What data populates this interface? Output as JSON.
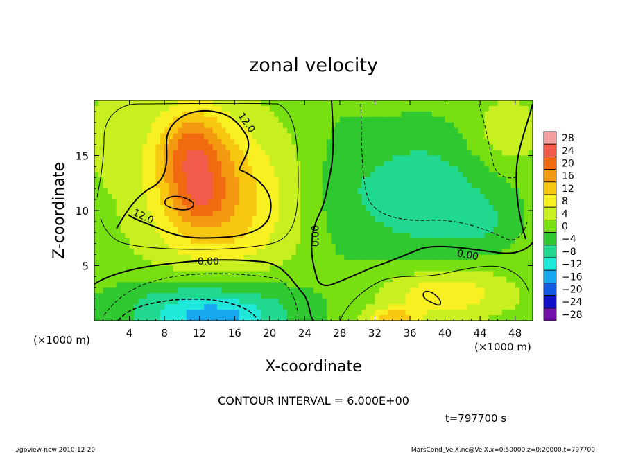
{
  "chart_data": {
    "type": "heatmap",
    "title": "zonal velocity",
    "xlabel": "X-coordinate",
    "ylabel": "Z-coordinate",
    "x_unit": "(×1000 m)",
    "y_unit": "(×1000 m)",
    "xlim": [
      0,
      50
    ],
    "ylim": [
      0,
      20
    ],
    "x_ticks": [
      4,
      8,
      12,
      16,
      20,
      24,
      28,
      32,
      36,
      40,
      44,
      48
    ],
    "y_ticks": [
      5,
      10,
      15
    ],
    "contour_interval_text": "CONTOUR INTERVAL = 6.000E+00",
    "time_text": "t=797700 s",
    "contour_labels": [
      {
        "text": "12.0",
        "x": 17.4,
        "y": 18.0,
        "angle": 55
      },
      {
        "text": "12.0",
        "x": 5.6,
        "y": 9.5,
        "angle": 25
      },
      {
        "text": "0.00",
        "x": 13.0,
        "y": 5.4,
        "angle": 0
      },
      {
        "text": "0.00",
        "x": 25.2,
        "y": 7.7,
        "angle": -90
      },
      {
        "text": "0.00",
        "x": 42.6,
        "y": 6.0,
        "angle": 10
      }
    ],
    "colorbar": {
      "levels": [
        28,
        24,
        20,
        16,
        12,
        8,
        4,
        0,
        -4,
        -8,
        -12,
        -16,
        -20,
        -24,
        -28
      ],
      "colors": [
        "#f4a0a0",
        "#f25a4a",
        "#f06a10",
        "#f49a10",
        "#f8c810",
        "#f8f020",
        "#c8f020",
        "#78e010",
        "#30c830",
        "#20d890",
        "#20e8d8",
        "#18a8f0",
        "#1058e0",
        "#1010c8",
        "#7010a8"
      ]
    },
    "field_blobs": [
      {
        "x": 14,
        "y": 11,
        "rx": 8,
        "ry": 7,
        "v": 14
      },
      {
        "x": 11,
        "y": 15.5,
        "rx": 4,
        "ry": 4,
        "v": 14
      },
      {
        "x": 12,
        "y": 11,
        "rx": 3,
        "ry": 2.5,
        "v": 6
      },
      {
        "x": 13,
        "y": 1.2,
        "rx": 10,
        "ry": 2.8,
        "v": -13
      },
      {
        "x": 14,
        "y": 0.3,
        "rx": 6,
        "ry": 1.2,
        "v": -6
      },
      {
        "x": 37,
        "y": 11.5,
        "rx": 9,
        "ry": 6,
        "v": -9
      },
      {
        "x": 44,
        "y": 9,
        "rx": 4,
        "ry": 2.5,
        "v": -4
      },
      {
        "x": 40,
        "y": 2.5,
        "rx": 7,
        "ry": 2.2,
        "v": 10
      },
      {
        "x": 34,
        "y": 0.2,
        "rx": 3,
        "ry": 1,
        "v": 12
      },
      {
        "x": 2,
        "y": 17,
        "rx": 3,
        "ry": 4,
        "v": 4
      },
      {
        "x": 47,
        "y": 17,
        "rx": 4,
        "ry": 3,
        "v": 6
      },
      {
        "x": 28,
        "y": 13,
        "rx": 3,
        "ry": 8,
        "v": -2
      }
    ]
  },
  "footer": {
    "left": "./gpview-new  2010-12-20",
    "right": "MarsCond_VelX.nc@VelX,x=0:50000,z=0:20000,t=797700"
  }
}
